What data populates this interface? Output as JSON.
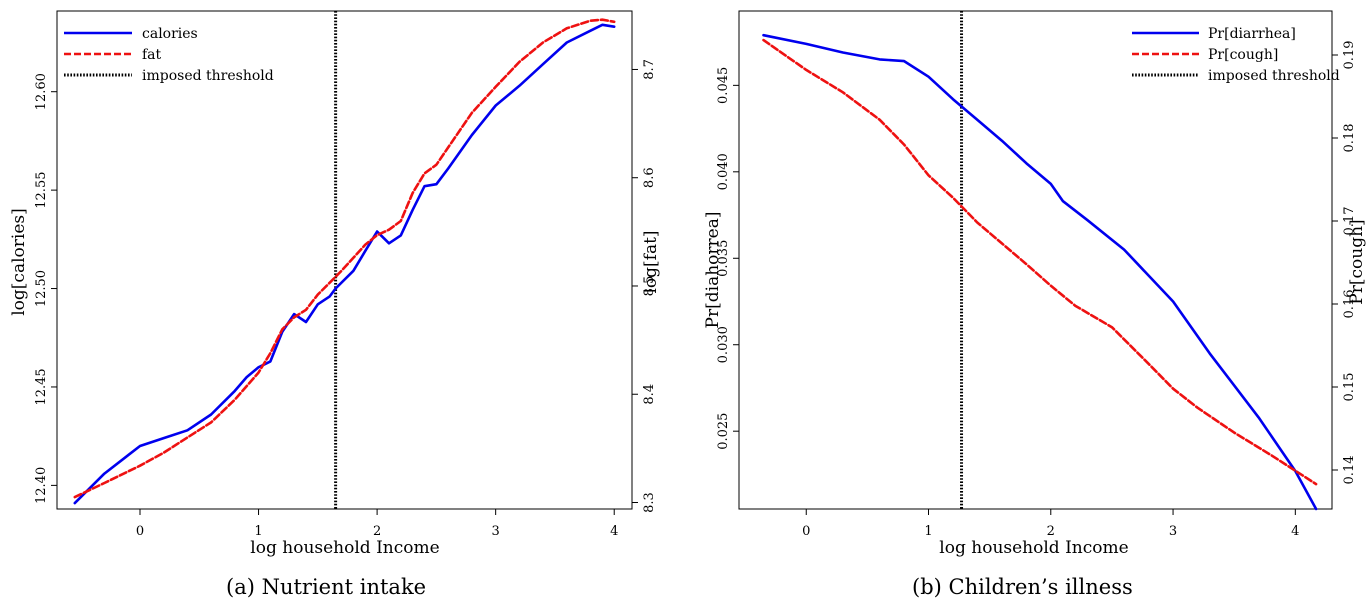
{
  "captions": {
    "a": "(a) Nutrient intake",
    "b": "(b) Children’s illness"
  },
  "chart_data": [
    {
      "type": "line",
      "xlabel": "log household Income",
      "ylabel": "log[calories]",
      "y2label": "log[fat]",
      "xlim": [
        -0.7,
        4.15
      ],
      "ylim": [
        12.388,
        12.641
      ],
      "y2lim": [
        8.294,
        8.754
      ],
      "xticks": [
        "0",
        "1",
        "2",
        "3",
        "4"
      ],
      "yticks": [
        "12.40",
        "12.45",
        "12.50",
        "12.55",
        "12.60"
      ],
      "y2ticks": [
        "8.3",
        "8.4",
        "8.5",
        "8.6",
        "8.7"
      ],
      "threshold": 1.65,
      "legend_position": "top-left",
      "series": [
        {
          "name": "calories",
          "axis": "left",
          "color": "#0000ee",
          "dash": "solid",
          "x": [
            -0.55,
            -0.3,
            0.0,
            0.2,
            0.4,
            0.6,
            0.8,
            0.9,
            1.0,
            1.1,
            1.2,
            1.3,
            1.4,
            1.5,
            1.6,
            1.65,
            1.8,
            1.9,
            2.0,
            2.1,
            2.2,
            2.3,
            2.4,
            2.5,
            2.6,
            2.8,
            3.0,
            3.2,
            3.4,
            3.6,
            3.8,
            3.9,
            4.0
          ],
          "y": [
            12.391,
            12.406,
            12.42,
            12.424,
            12.428,
            12.436,
            12.448,
            12.455,
            12.46,
            12.463,
            12.478,
            12.487,
            12.483,
            12.492,
            12.496,
            12.5,
            12.509,
            12.519,
            12.529,
            12.523,
            12.527,
            12.54,
            12.552,
            12.553,
            12.561,
            12.578,
            12.593,
            12.603,
            12.614,
            12.625,
            12.631,
            12.634,
            12.633
          ]
        },
        {
          "name": "fat",
          "axis": "right",
          "color": "#ee1111",
          "dash": "dashed",
          "x": [
            -0.55,
            -0.3,
            0.0,
            0.2,
            0.4,
            0.6,
            0.8,
            1.0,
            1.1,
            1.2,
            1.3,
            1.4,
            1.5,
            1.6,
            1.7,
            1.8,
            1.9,
            2.0,
            2.1,
            2.2,
            2.3,
            2.4,
            2.5,
            2.6,
            2.8,
            3.0,
            3.2,
            3.4,
            3.6,
            3.8,
            3.9,
            4.0
          ],
          "y": [
            8.305,
            8.318,
            8.334,
            8.346,
            8.36,
            8.374,
            8.395,
            8.42,
            8.438,
            8.46,
            8.471,
            8.478,
            8.492,
            8.503,
            8.514,
            8.526,
            8.538,
            8.547,
            8.552,
            8.56,
            8.586,
            8.604,
            8.612,
            8.628,
            8.66,
            8.684,
            8.707,
            8.725,
            8.738,
            8.745,
            8.746,
            8.744
          ]
        }
      ]
    },
    {
      "type": "line",
      "xlabel": "log household Income",
      "ylabel": "Pr[diahorrea]",
      "y2label": "Pr[cough]",
      "xlim": [
        -0.55,
        4.3
      ],
      "ylim": [
        0.0205,
        0.0493
      ],
      "y2lim": [
        0.1353,
        0.1953
      ],
      "xticks": [
        "0",
        "1",
        "2",
        "3",
        "4"
      ],
      "yticks": [
        "0.025",
        "0.030",
        "0.035",
        "0.040",
        "0.045"
      ],
      "y2ticks": [
        "0.14",
        "0.15",
        "0.16",
        "0.17",
        "0.18",
        "0.19"
      ],
      "threshold": 1.27,
      "legend_position": "top-right",
      "series": [
        {
          "name": "Pr[diarrhea]",
          "axis": "left",
          "color": "#0000ee",
          "dash": "solid",
          "x": [
            -0.35,
            0.0,
            0.3,
            0.6,
            0.8,
            1.0,
            1.2,
            1.4,
            1.6,
            1.8,
            2.0,
            2.1,
            2.3,
            2.6,
            3.0,
            3.3,
            3.7,
            4.0,
            4.17
          ],
          "y": [
            0.0479,
            0.0474,
            0.0469,
            0.0465,
            0.0464,
            0.0455,
            0.0442,
            0.043,
            0.0418,
            0.0405,
            0.0393,
            0.0383,
            0.0372,
            0.0355,
            0.0325,
            0.0295,
            0.0258,
            0.0227,
            0.0205
          ]
        },
        {
          "name": "Pr[cough]",
          "axis": "right",
          "color": "#ee1111",
          "dash": "dashed",
          "x": [
            -0.35,
            0.0,
            0.3,
            0.6,
            0.8,
            1.0,
            1.2,
            1.4,
            1.6,
            1.8,
            2.0,
            2.2,
            2.5,
            2.8,
            3.0,
            3.2,
            3.5,
            3.8,
            4.17
          ],
          "y": [
            0.1918,
            0.1882,
            0.1855,
            0.1822,
            0.1792,
            0.1755,
            0.1728,
            0.1698,
            0.1673,
            0.1648,
            0.1622,
            0.1598,
            0.1572,
            0.1528,
            0.1498,
            0.1475,
            0.1445,
            0.1418,
            0.1383
          ]
        }
      ]
    }
  ]
}
